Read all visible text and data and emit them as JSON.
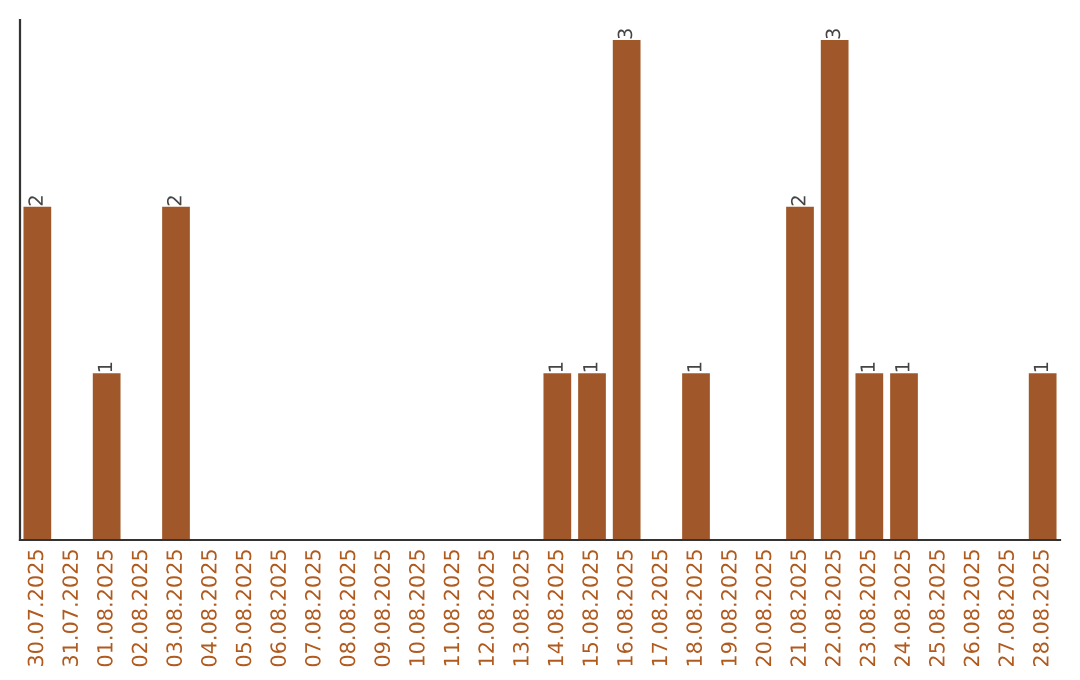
{
  "chart_data": {
    "type": "bar",
    "categories": [
      "30.07.2025",
      "31.07.2025",
      "01.08.2025",
      "02.08.2025",
      "03.08.2025",
      "04.08.2025",
      "05.08.2025",
      "06.08.2025",
      "07.08.2025",
      "08.08.2025",
      "09.08.2025",
      "10.08.2025",
      "11.08.2025",
      "12.08.2025",
      "13.08.2025",
      "14.08.2025",
      "15.08.2025",
      "16.08.2025",
      "17.08.2025",
      "18.08.2025",
      "19.08.2025",
      "20.08.2025",
      "21.08.2025",
      "22.08.2025",
      "23.08.2025",
      "24.08.2025",
      "25.08.2025",
      "26.08.2025",
      "27.08.2025",
      "28.08.2025"
    ],
    "values": [
      2,
      0,
      1,
      0,
      2,
      0,
      0,
      0,
      0,
      0,
      0,
      0,
      0,
      0,
      0,
      1,
      1,
      3,
      0,
      1,
      0,
      0,
      2,
      3,
      1,
      1,
      0,
      0,
      0,
      1
    ],
    "value_labels": [
      "2",
      null,
      "1",
      null,
      "2",
      null,
      null,
      null,
      null,
      null,
      null,
      null,
      null,
      null,
      null,
      "1",
      "1",
      "3",
      null,
      "1",
      null,
      null,
      "2",
      "3",
      "1",
      "1",
      null,
      null,
      null,
      "1"
    ],
    "color": "#a0582a",
    "tick_labels": "x",
    "grid": false,
    "legend": false
  }
}
